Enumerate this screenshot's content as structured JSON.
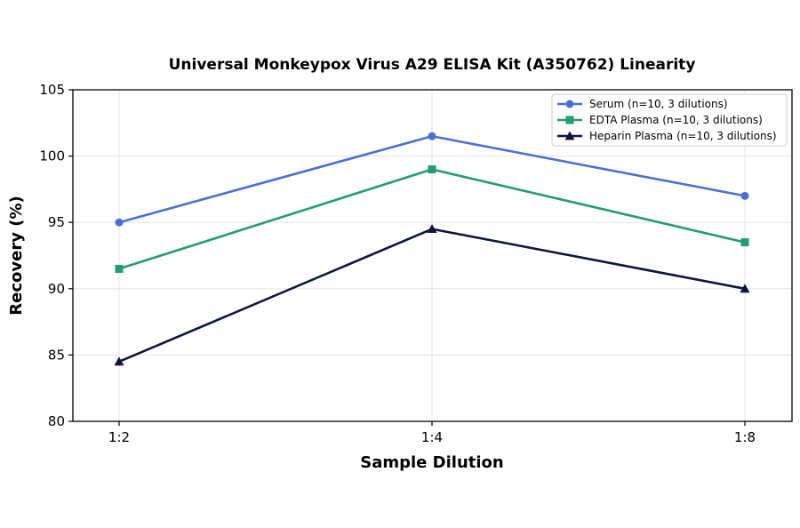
{
  "chart_data": {
    "type": "line",
    "title": "Universal Monkeypox Virus A29 ELISA Kit (A350762) Linearity",
    "xlabel": "Sample Dilution",
    "ylabel": "Recovery (%)",
    "categories": [
      "1:2",
      "1:4",
      "1:8"
    ],
    "ylim": [
      80,
      105
    ],
    "yticks": [
      80,
      85,
      90,
      95,
      100,
      105
    ],
    "grid": true,
    "legend_position": "top-right",
    "series": [
      {
        "name": "Serum (n=10, 3 dilutions)",
        "values": [
          95,
          101.5,
          97
        ],
        "color": "#4b6fd6",
        "marker": "circle"
      },
      {
        "name": "EDTA Plasma (n=10, 3 dilutions)",
        "values": [
          91.5,
          99,
          93.5
        ],
        "color": "#229b76",
        "marker": "square"
      },
      {
        "name": "Heparin Plasma (n=10, 3 dilutions)",
        "values": [
          84.5,
          94.5,
          90
        ],
        "color": "#0d1640",
        "marker": "triangle"
      }
    ]
  }
}
